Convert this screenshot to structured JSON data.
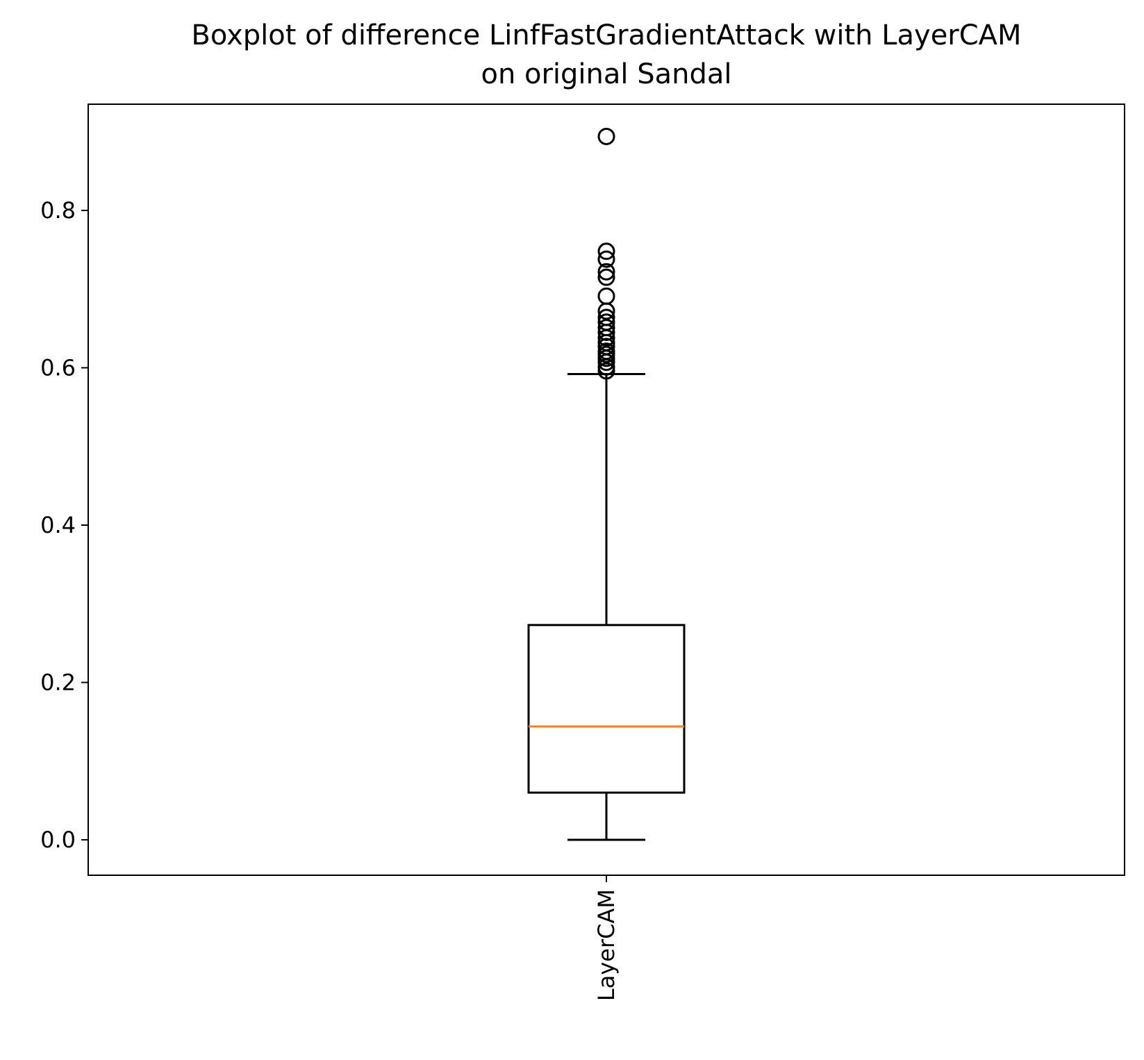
{
  "chart_data": {
    "type": "boxplot",
    "title_lines": [
      "Boxplot of difference LinfFastGradientAttack with LayerCAM",
      "on original Sandal"
    ],
    "xlabel": "",
    "ylabel": "",
    "categories": [
      "LayerCAM"
    ],
    "ylim": [
      -0.045,
      0.935
    ],
    "yticks": [
      {
        "value": 0.0,
        "label": "0.0"
      },
      {
        "value": 0.2,
        "label": "0.2"
      },
      {
        "value": 0.4,
        "label": "0.4"
      },
      {
        "value": 0.6,
        "label": "0.6"
      },
      {
        "value": 0.8,
        "label": "0.8"
      }
    ],
    "boxes": [
      {
        "name": "LayerCAM",
        "whisker_low": 0.0,
        "q1": 0.06,
        "median": 0.144,
        "q3": 0.273,
        "whisker_high": 0.592,
        "outliers": [
          0.894,
          0.748,
          0.738,
          0.722,
          0.715,
          0.691,
          0.672,
          0.664,
          0.658,
          0.651,
          0.645,
          0.638,
          0.632,
          0.627,
          0.621,
          0.617,
          0.612,
          0.607,
          0.601,
          0.596
        ]
      }
    ],
    "grid": false,
    "colors": {
      "box": "#000000",
      "median": "#ff7f0e",
      "outlier": "#000000"
    }
  }
}
